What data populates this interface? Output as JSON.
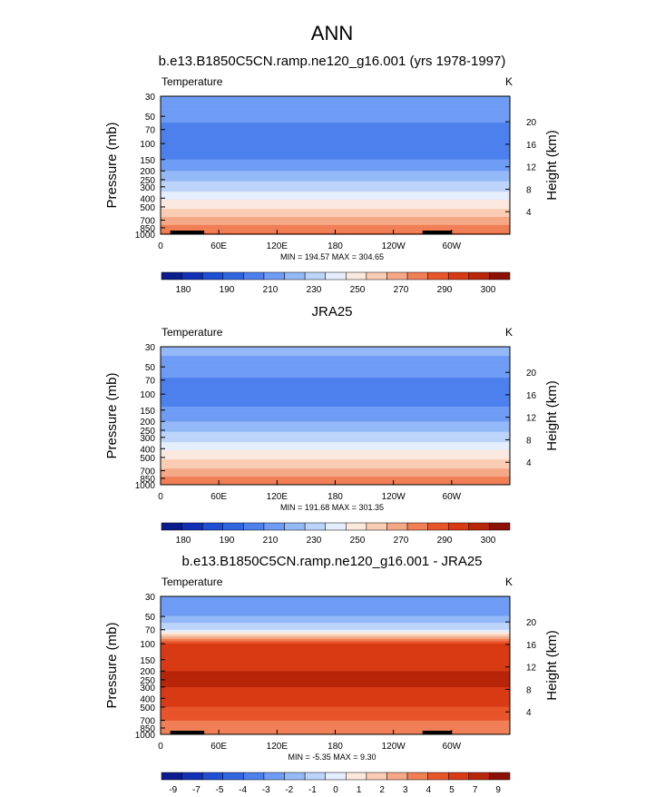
{
  "page": {
    "title": "ANN"
  },
  "panels": [
    {
      "title": "b.e13.B1850C5CN.ramp.ne120_g16.001 (yrs 1978-1997)",
      "left_label": "Temperature",
      "right_label": "K",
      "ylabel": "Pressure (mb)",
      "ylabel_right": "Height (km)",
      "pressure_ticks": [
        "30",
        "50",
        "70",
        "100",
        "150",
        "200",
        "250",
        "300",
        "400",
        "500",
        "700",
        "850",
        "1000"
      ],
      "height_ticks": [
        "20",
        "16",
        "12",
        "8",
        "4"
      ],
      "x_ticks": [
        "0",
        "60E",
        "120E",
        "180",
        "120W",
        "60W"
      ],
      "stats": "MIN = 194.57  MAX = 304.65",
      "colorbar_labels": [
        "180",
        "190",
        "210",
        "230",
        "250",
        "270",
        "290",
        "300"
      ],
      "colors": [
        "#0b1d8c",
        "#1230b4",
        "#1f4fd2",
        "#3065e0",
        "#4d80ec",
        "#6f9cf4",
        "#94b9f7",
        "#bcd4fa",
        "#e4eefc",
        "#fbe8de",
        "#f9ccb3",
        "#f5a886",
        "#f07f56",
        "#e8552b",
        "#d83a14",
        "#b82508",
        "#8c1005"
      ]
    },
    {
      "title": "JRA25",
      "left_label": "Temperature",
      "right_label": "K",
      "ylabel": "Pressure (mb)",
      "ylabel_right": "Height (km)",
      "pressure_ticks": [
        "30",
        "50",
        "70",
        "100",
        "150",
        "200",
        "250",
        "300",
        "400",
        "500",
        "700",
        "850",
        "1000"
      ],
      "height_ticks": [
        "20",
        "16",
        "12",
        "8",
        "4"
      ],
      "x_ticks": [
        "0",
        "60E",
        "120E",
        "180",
        "120W",
        "60W"
      ],
      "stats": "MIN = 191.68  MAX = 301.35",
      "colorbar_labels": [
        "180",
        "190",
        "210",
        "230",
        "250",
        "270",
        "290",
        "300"
      ],
      "colors": [
        "#0b1d8c",
        "#1230b4",
        "#1f4fd2",
        "#3065e0",
        "#4d80ec",
        "#6f9cf4",
        "#94b9f7",
        "#bcd4fa",
        "#e4eefc",
        "#fbe8de",
        "#f9ccb3",
        "#f5a886",
        "#f07f56",
        "#e8552b",
        "#d83a14",
        "#b82508",
        "#8c1005"
      ]
    },
    {
      "title": "b.e13.B1850C5CN.ramp.ne120_g16.001 - JRA25",
      "left_label": "Temperature",
      "right_label": "K",
      "ylabel": "Pressure (mb)",
      "ylabel_right": "Height (km)",
      "pressure_ticks": [
        "30",
        "50",
        "70",
        "100",
        "150",
        "200",
        "250",
        "300",
        "400",
        "500",
        "700",
        "850",
        "1000"
      ],
      "height_ticks": [
        "20",
        "16",
        "12",
        "8",
        "4"
      ],
      "x_ticks": [
        "0",
        "60E",
        "120E",
        "180",
        "120W",
        "60W"
      ],
      "stats": "MIN = -5.35  MAX =  9.30",
      "colorbar_labels": [
        "-9",
        "-7",
        "-5",
        "-4",
        "-3",
        "-2",
        "-1",
        "0",
        "1",
        "2",
        "3",
        "4",
        "5",
        "7",
        "9"
      ],
      "colors": [
        "#0b1d8c",
        "#1230b4",
        "#1f4fd2",
        "#3065e0",
        "#4d80ec",
        "#6f9cf4",
        "#94b9f7",
        "#bcd4fa",
        "#e4eefc",
        "#fbe8de",
        "#f9ccb3",
        "#f5a886",
        "#f07f56",
        "#e8552b",
        "#d83a14",
        "#b82508",
        "#8c1005"
      ]
    }
  ],
  "chart_data": [
    {
      "type": "heatmap",
      "title": "b.e13.B1850C5CN.ramp.ne120_g16.001 (yrs 1978-1997)",
      "variable": "Temperature",
      "units": "K",
      "x": [
        "0",
        "60E",
        "120E",
        "180",
        "120W",
        "60W"
      ],
      "xlim": [
        0,
        360
      ],
      "ylabel": "Pressure (mb)",
      "ylim": [
        1000,
        30
      ],
      "y_scale": "log",
      "pressure": [
        30,
        50,
        70,
        100,
        150,
        200,
        250,
        300,
        400,
        500,
        700,
        850,
        1000
      ],
      "zonal_mean_values": [
        218,
        212,
        208,
        206,
        210,
        220,
        228,
        235,
        248,
        258,
        274,
        283,
        292
      ],
      "min": 194.57,
      "max": 304.65,
      "levels": [
        180,
        190,
        200,
        210,
        220,
        230,
        240,
        250,
        260,
        270,
        280,
        290,
        295,
        300
      ],
      "colorbar_labels": [
        "180",
        "190",
        "210",
        "230",
        "250",
        "270",
        "290",
        "300"
      ]
    },
    {
      "type": "heatmap",
      "title": "JRA25",
      "variable": "Temperature",
      "units": "K",
      "x": [
        "0",
        "60E",
        "120E",
        "180",
        "120W",
        "60W"
      ],
      "xlim": [
        0,
        360
      ],
      "ylabel": "Pressure (mb)",
      "ylim": [
        1000,
        30
      ],
      "y_scale": "log",
      "pressure": [
        30,
        50,
        70,
        100,
        150,
        200,
        250,
        300,
        400,
        500,
        700,
        850,
        1000
      ],
      "zonal_mean_values": [
        225,
        214,
        209,
        207,
        211,
        220,
        228,
        235,
        248,
        258,
        272,
        282,
        290
      ],
      "min": 191.68,
      "max": 301.35,
      "levels": [
        180,
        190,
        200,
        210,
        220,
        230,
        240,
        250,
        260,
        270,
        280,
        290,
        295,
        300
      ],
      "colorbar_labels": [
        "180",
        "190",
        "210",
        "230",
        "250",
        "270",
        "290",
        "300"
      ]
    },
    {
      "type": "heatmap",
      "title": "b.e13.B1850C5CN.ramp.ne120_g16.001 - JRA25",
      "variable": "Temperature",
      "units": "K",
      "x": [
        "0",
        "60E",
        "120E",
        "180",
        "120W",
        "60W"
      ],
      "xlim": [
        0,
        360
      ],
      "ylabel": "Pressure (mb)",
      "ylim": [
        1000,
        30
      ],
      "y_scale": "log",
      "pressure": [
        30,
        50,
        70,
        100,
        150,
        200,
        250,
        300,
        400,
        500,
        700,
        850,
        1000
      ],
      "zonal_mean_values": [
        -4,
        -3,
        -1,
        5,
        6,
        7,
        7,
        7,
        6,
        5,
        4,
        3,
        3
      ],
      "min": -5.35,
      "max": 9.3,
      "levels": [
        -9,
        -7,
        -5,
        -4,
        -3,
        -2,
        -1,
        0,
        1,
        2,
        3,
        4,
        5,
        7,
        9
      ],
      "colorbar_labels": [
        "-9",
        "-7",
        "-5",
        "-4",
        "-3",
        "-2",
        "-1",
        "0",
        "1",
        "2",
        "3",
        "4",
        "5",
        "7",
        "9"
      ]
    }
  ]
}
